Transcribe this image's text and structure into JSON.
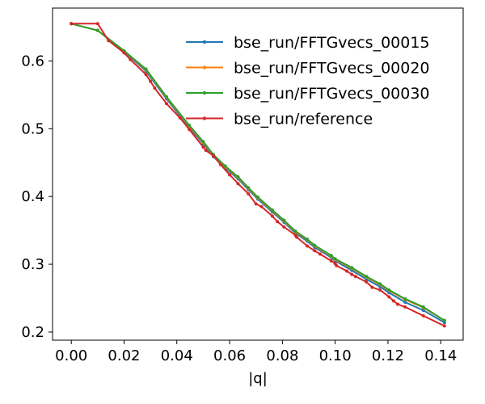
{
  "chart_data": {
    "type": "line",
    "title": "",
    "xlabel": "|q|",
    "ylabel": "",
    "xlim": [
      -0.0071,
      0.1485
    ],
    "ylim": [
      0.188,
      0.678
    ],
    "xticks": [
      0.0,
      0.02,
      0.04,
      0.06,
      0.08,
      0.1,
      0.12,
      0.14
    ],
    "xtick_labels": [
      "0.00",
      "0.02",
      "0.04",
      "0.06",
      "0.08",
      "0.10",
      "0.12",
      "0.14"
    ],
    "yticks": [
      0.2,
      0.3,
      0.4,
      0.5,
      0.6
    ],
    "ytick_labels": [
      "0.2",
      "0.3",
      "0.4",
      "0.5",
      "0.6"
    ],
    "grid": false,
    "legend_position": "top-right",
    "series": [
      {
        "name": "bse_run/FFTGvecs_00015",
        "color": "#1f77b4",
        "x": [
          0.0,
          0.01,
          0.02,
          0.0283,
          0.0361,
          0.0447,
          0.05,
          0.0538,
          0.0583,
          0.0632,
          0.0671,
          0.0707,
          0.0762,
          0.0806,
          0.0849,
          0.0894,
          0.0922,
          0.0985,
          0.1,
          0.1063,
          0.1118,
          0.117,
          0.1204,
          0.1265,
          0.1334,
          0.1414
        ],
        "y": [
          0.655,
          0.645,
          0.614,
          0.585,
          0.544,
          0.502,
          0.478,
          0.459,
          0.442,
          0.426,
          0.41,
          0.396,
          0.377,
          0.362,
          0.346,
          0.334,
          0.325,
          0.31,
          0.305,
          0.291,
          0.278,
          0.267,
          0.258,
          0.244,
          0.232,
          0.214
        ]
      },
      {
        "name": "bse_run/FFTGvecs_00020",
        "color": "#ff7f0e",
        "x": [
          0.0,
          0.01,
          0.02,
          0.0283,
          0.0361,
          0.0447,
          0.05,
          0.0538,
          0.0583,
          0.0632,
          0.0671,
          0.0707,
          0.0762,
          0.0806,
          0.0849,
          0.0894,
          0.0922,
          0.0985,
          0.1,
          0.1063,
          0.1118,
          0.117,
          0.1204,
          0.1265,
          0.1334,
          0.1414
        ],
        "y": [
          0.655,
          0.645,
          0.615,
          0.587,
          0.546,
          0.504,
          0.48,
          0.461,
          0.444,
          0.428,
          0.412,
          0.398,
          0.379,
          0.364,
          0.348,
          0.336,
          0.327,
          0.312,
          0.307,
          0.294,
          0.281,
          0.27,
          0.261,
          0.248,
          0.236,
          0.217
        ]
      },
      {
        "name": "bse_run/FFTGvecs_00030",
        "color": "#2ca02c",
        "x": [
          0.0,
          0.01,
          0.02,
          0.0283,
          0.0361,
          0.0447,
          0.05,
          0.0538,
          0.0583,
          0.0632,
          0.0671,
          0.0707,
          0.0762,
          0.0806,
          0.0849,
          0.0894,
          0.0922,
          0.0985,
          0.1,
          0.1063,
          0.1118,
          0.117,
          0.1204,
          0.1265,
          0.1334,
          0.1414
        ],
        "y": [
          0.655,
          0.645,
          0.615,
          0.588,
          0.547,
          0.505,
          0.481,
          0.462,
          0.445,
          0.429,
          0.413,
          0.399,
          0.38,
          0.365,
          0.349,
          0.337,
          0.328,
          0.313,
          0.308,
          0.295,
          0.282,
          0.271,
          0.262,
          0.249,
          0.237,
          0.217
        ]
      },
      {
        "name": "bse_run/reference",
        "color": "#d62728",
        "x": [
          0.0,
          0.01,
          0.0141,
          0.02,
          0.0224,
          0.0283,
          0.03,
          0.0316,
          0.0361,
          0.0412,
          0.0447,
          0.05,
          0.051,
          0.0539,
          0.0566,
          0.06,
          0.0632,
          0.0671,
          0.07,
          0.0721,
          0.0762,
          0.0781,
          0.0806,
          0.0849,
          0.0854,
          0.0894,
          0.0922,
          0.0943,
          0.0985,
          0.1,
          0.1005,
          0.1044,
          0.1063,
          0.1077,
          0.1118,
          0.114,
          0.117,
          0.1204,
          0.1221,
          0.1237,
          0.1265,
          0.1334,
          0.1414
        ],
        "y": [
          0.655,
          0.655,
          0.63,
          0.612,
          0.602,
          0.58,
          0.57,
          0.56,
          0.537,
          0.516,
          0.499,
          0.473,
          0.468,
          0.46,
          0.447,
          0.432,
          0.419,
          0.404,
          0.389,
          0.385,
          0.371,
          0.363,
          0.355,
          0.343,
          0.34,
          0.327,
          0.32,
          0.315,
          0.305,
          0.301,
          0.298,
          0.29,
          0.285,
          0.282,
          0.274,
          0.266,
          0.262,
          0.252,
          0.246,
          0.241,
          0.237,
          0.224,
          0.209
        ]
      }
    ]
  }
}
